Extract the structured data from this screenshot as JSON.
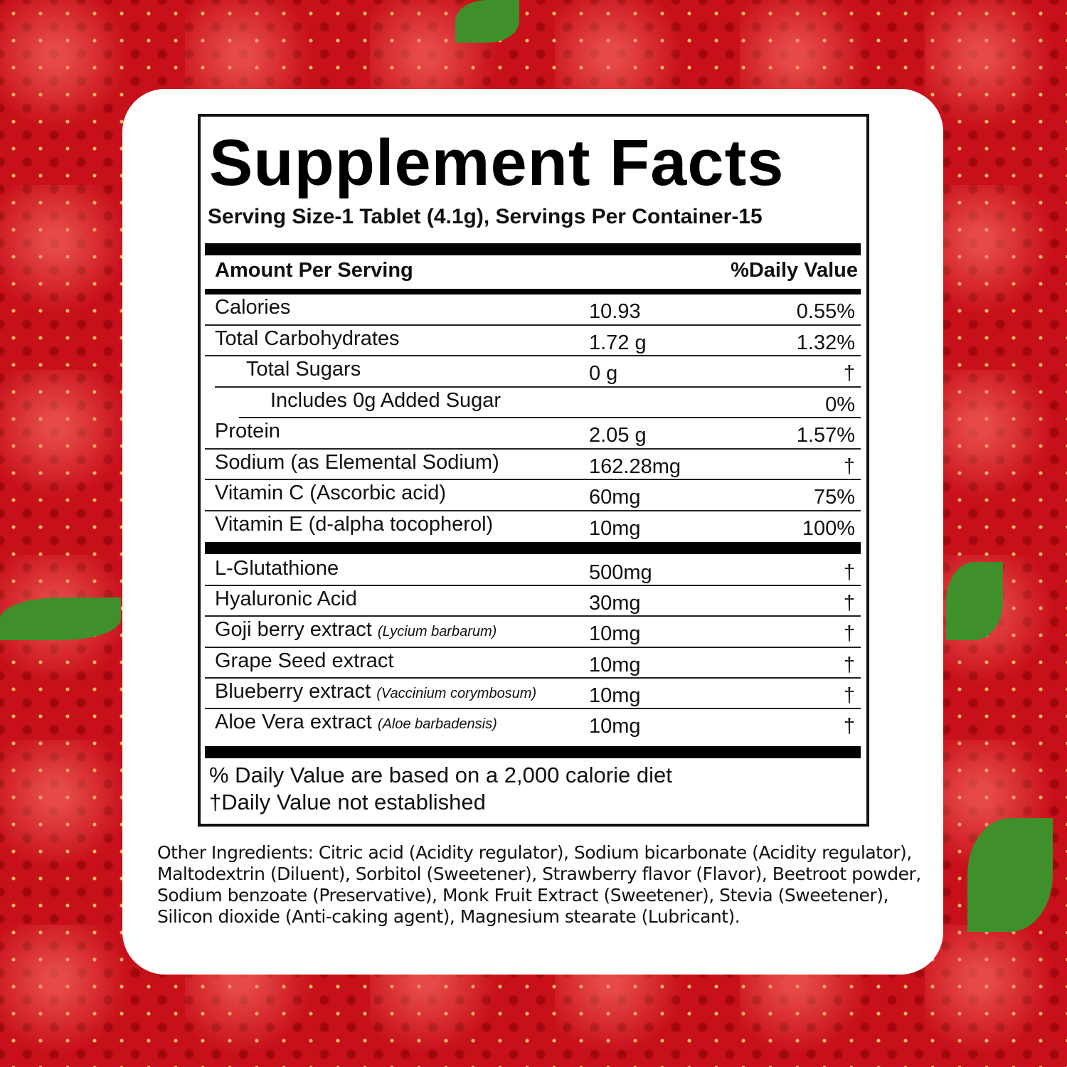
{
  "title": "Supplement Facts",
  "serving": "Serving Size-1 Tablet (4.1g), Servings Per Container-15",
  "header": {
    "amount": "Amount Per Serving",
    "dv": "%Daily Value"
  },
  "nutrients": [
    {
      "name": "Calories",
      "amount": "10.93",
      "dv": "0.55%"
    },
    {
      "name": "Total Carbohydrates",
      "amount": "1.72 g",
      "dv": "1.32%"
    },
    {
      "name": "Total Sugars",
      "amount": "0 g",
      "dv": "†"
    },
    {
      "name": "Includes 0g Added Sugar",
      "amount": "",
      "dv": "0%"
    },
    {
      "name": "Protein",
      "amount": "2.05 g",
      "dv": "1.57%"
    },
    {
      "name": "Sodium (as Elemental Sodium)",
      "amount": "162.28mg",
      "dv": "†"
    },
    {
      "name": "Vitamin C (Ascorbic acid)",
      "amount": "60mg",
      "dv": "75%"
    },
    {
      "name": "Vitamin E (d-alpha tocopherol)",
      "amount": "10mg",
      "dv": "100%"
    }
  ],
  "ingredients": [
    {
      "name": "L-Glutathione",
      "latin": "",
      "amount": "500mg",
      "dv": "†"
    },
    {
      "name": "Hyaluronic Acid",
      "latin": "",
      "amount": "30mg",
      "dv": "†"
    },
    {
      "name": "Goji berry extract",
      "latin": "(Lycium barbarum)",
      "amount": "10mg",
      "dv": "†"
    },
    {
      "name": "Grape Seed extract",
      "latin": "",
      "amount": "10mg",
      "dv": "†"
    },
    {
      "name": "Blueberry extract",
      "latin": "(Vaccinium corymbosum)",
      "amount": "10mg",
      "dv": "†"
    },
    {
      "name": "Aloe Vera extract",
      "latin": "(Aloe barbadensis)",
      "amount": "10mg",
      "dv": "†"
    }
  ],
  "footnotes": [
    "% Daily Value are based on a 2,000 calorie diet",
    "†Daily Value not established"
  ],
  "other_ingredients": "Other Ingredients: Citric acid (Acidity regulator), Sodium bicarbonate (Acidity regulator), Maltodextrin (Diluent), Sorbitol (Sweetener), Strawberry flavor (Flavor), Beetroot powder, Sodium benzoate (Preservative), Monk Fruit Extract (Sweetener), Stevia (Sweetener), Silicon dioxide (Anti-caking agent), Magnesium stearate (Lubricant).",
  "colors": {
    "background": "#c8101a",
    "leaf": "#3f8f2a"
  }
}
